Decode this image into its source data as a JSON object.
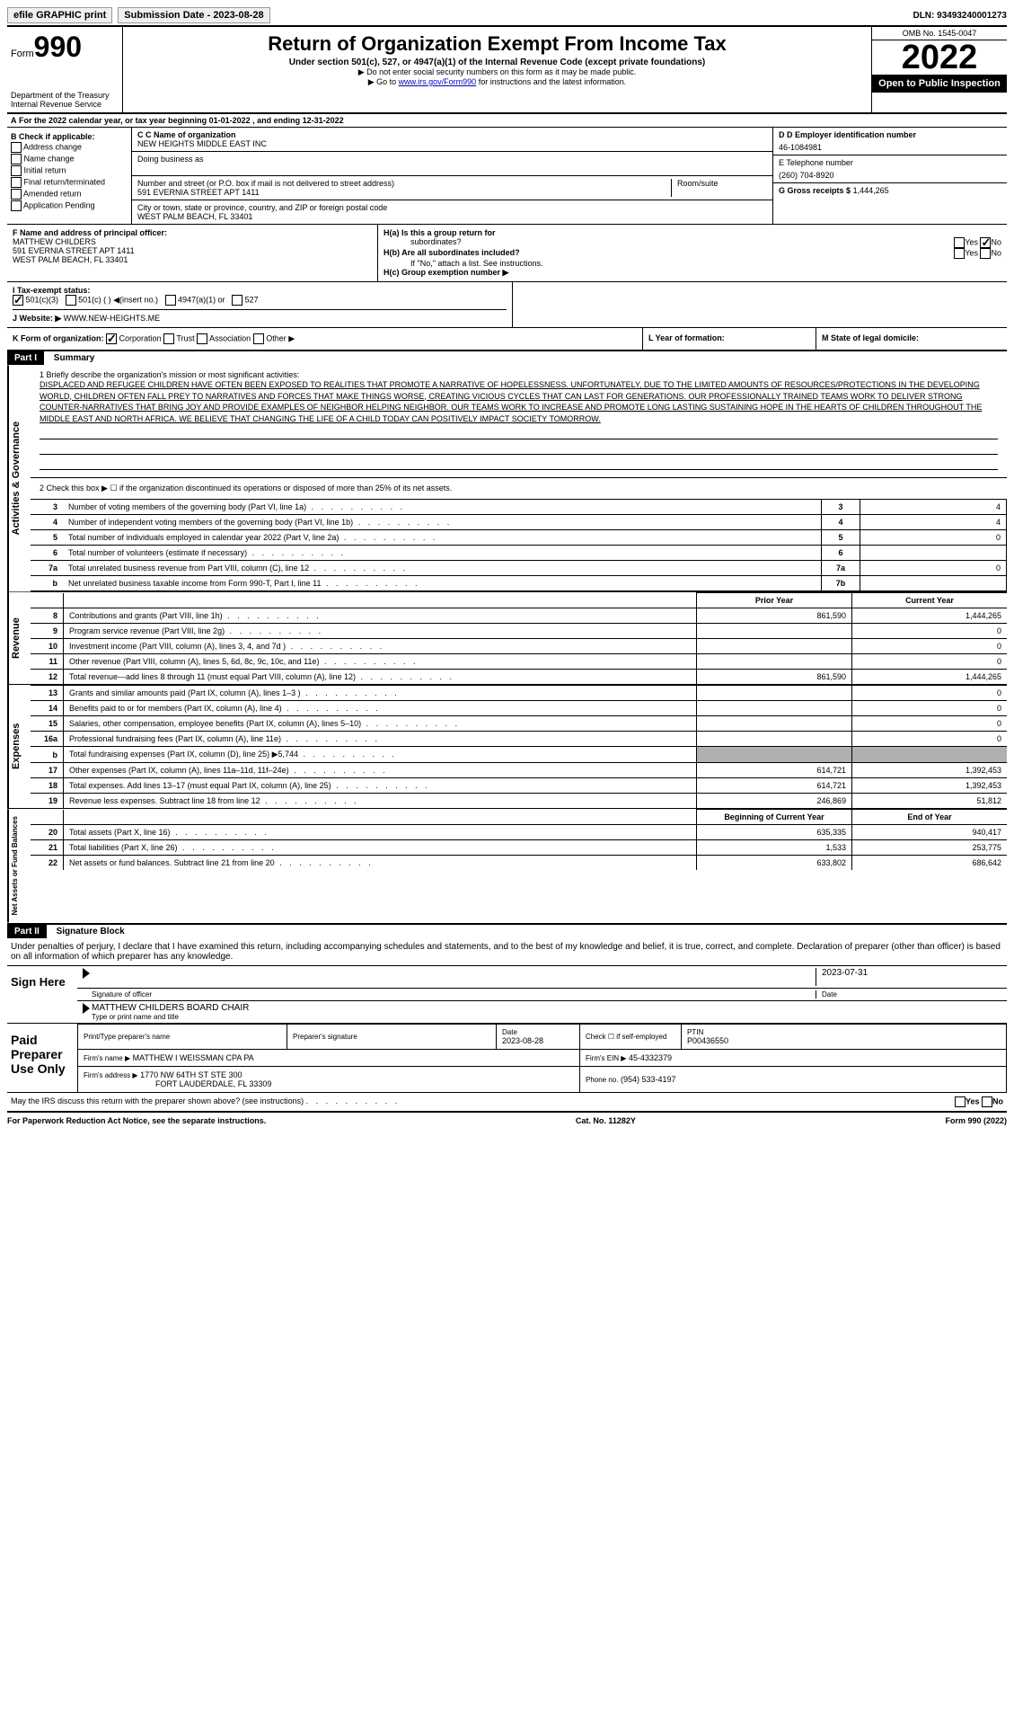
{
  "top": {
    "efile": "efile GRAPHIC print",
    "submission_label": "Submission Date - 2023-08-28",
    "dln": "DLN: 93493240001273"
  },
  "header": {
    "form_prefix": "Form",
    "form_num": "990",
    "dept": "Department of the Treasury",
    "irs": "Internal Revenue Service",
    "title": "Return of Organization Exempt From Income Tax",
    "sub1": "Under section 501(c), 527, or 4947(a)(1) of the Internal Revenue Code (except private foundations)",
    "sub2": "▶ Do not enter social security numbers on this form as it may be made public.",
    "sub3_pre": "▶ Go to ",
    "sub3_link": "www.irs.gov/Form990",
    "sub3_post": " for instructions and the latest information.",
    "omb": "OMB No. 1545-0047",
    "year": "2022",
    "open": "Open to Public Inspection"
  },
  "line_a": "For the 2022 calendar year, or tax year beginning 01-01-2022   , and ending 12-31-2022",
  "box_b": {
    "label": "B Check if applicable:",
    "opts": [
      "Address change",
      "Name change",
      "Initial return",
      "Final return/terminated",
      "Amended return",
      "Application Pending"
    ]
  },
  "box_c": {
    "name_label": "C Name of organization",
    "name": "NEW HEIGHTS MIDDLE EAST INC",
    "dba_label": "Doing business as",
    "addr_label": "Number and street (or P.O. box if mail is not delivered to street address)",
    "room_label": "Room/suite",
    "addr": "591 EVERNIA STREET APT 1411",
    "city_label": "City or town, state or province, country, and ZIP or foreign postal code",
    "city": "WEST PALM BEACH, FL  33401"
  },
  "box_d": {
    "label": "D Employer identification number",
    "ein": "46-1084981",
    "e_label": "E Telephone number",
    "phone": "(260) 704-8920",
    "g_label": "G Gross receipts $",
    "gross": "1,444,265"
  },
  "box_f": {
    "label": "F  Name and address of principal officer:",
    "name": "MATTHEW CHILDERS",
    "addr1": "591 EVERNIA STREET APT 1411",
    "addr2": "WEST PALM BEACH, FL  33401"
  },
  "box_h": {
    "ha": "H(a)  Is this a group return for",
    "ha2": "subordinates?",
    "hb": "H(b)  Are all subordinates included?",
    "hb_note": "If \"No,\" attach a list. See instructions.",
    "hc": "H(c)  Group exemption number ▶"
  },
  "box_i": {
    "label": "I   Tax-exempt status:",
    "opts": [
      "501(c)(3)",
      "501(c) (  ) ◀(insert no.)",
      "4947(a)(1) or",
      "527"
    ]
  },
  "box_j": {
    "label": "J   Website: ▶",
    "value": "WWW.NEW-HEIGHTS.ME"
  },
  "box_k": "K Form of organization:",
  "box_k_opts": [
    "Corporation",
    "Trust",
    "Association",
    "Other ▶"
  ],
  "box_l": "L Year of formation:",
  "box_m": "M State of legal domicile:",
  "part1": {
    "label": "Part I",
    "title": "Summary",
    "q1": "1   Briefly describe the organization's mission or most significant activities:",
    "mission": "DISPLACED AND REFUGEE CHILDREN HAVE OFTEN BEEN EXPOSED TO REALITIES THAT PROMOTE A NARRATIVE OF HOPELESSNESS. UNFORTUNATELY, DUE TO THE LIMITED AMOUNTS OF RESOURCES/PROTECTIONS IN THE DEVELOPING WORLD, CHILDREN OFTEN FALL PREY TO NARRATIVES AND FORCES THAT MAKE THINGS WORSE, CREATING VICIOUS CYCLES THAT CAN LAST FOR GENERATIONS. OUR PROFESSIONALLY TRAINED TEAMS WORK TO DELIVER STRONG COUNTER-NARRATIVES THAT BRING JOY AND PROVIDE EXAMPLES OF NEIGHBOR HELPING NEIGHBOR. OUR TEAMS WORK TO INCREASE AND PROMOTE LONG LASTING SUSTAINING HOPE IN THE HEARTS OF CHILDREN THROUGHOUT THE MIDDLE EAST AND NORTH AFRICA. WE BELIEVE THAT CHANGING THE LIFE OF A CHILD TODAY CAN POSITIVELY IMPACT SOCIETY TOMORROW.",
    "q2": "2   Check this box ▶ ☐  if the organization discontinued its operations or disposed of more than 25% of its net assets."
  },
  "gov_lines": [
    {
      "n": "3",
      "d": "Number of voting members of the governing body (Part VI, line 1a)",
      "c": "3",
      "v": "4"
    },
    {
      "n": "4",
      "d": "Number of independent voting members of the governing body (Part VI, line 1b)",
      "c": "4",
      "v": "4"
    },
    {
      "n": "5",
      "d": "Total number of individuals employed in calendar year 2022 (Part V, line 2a)",
      "c": "5",
      "v": "0"
    },
    {
      "n": "6",
      "d": "Total number of volunteers (estimate if necessary)",
      "c": "6",
      "v": ""
    },
    {
      "n": "7a",
      "d": "Total unrelated business revenue from Part VIII, column (C), line 12",
      "c": "7a",
      "v": "0"
    },
    {
      "n": "b",
      "d": "Net unrelated business taxable income from Form 990-T, Part I, line 11",
      "c": "7b",
      "v": ""
    }
  ],
  "rev_header": {
    "prior": "Prior Year",
    "current": "Current Year"
  },
  "rev_lines": [
    {
      "n": "8",
      "d": "Contributions and grants (Part VIII, line 1h)",
      "p": "861,590",
      "c": "1,444,265"
    },
    {
      "n": "9",
      "d": "Program service revenue (Part VIII, line 2g)",
      "p": "",
      "c": "0"
    },
    {
      "n": "10",
      "d": "Investment income (Part VIII, column (A), lines 3, 4, and 7d )",
      "p": "",
      "c": "0"
    },
    {
      "n": "11",
      "d": "Other revenue (Part VIII, column (A), lines 5, 6d, 8c, 9c, 10c, and 11e)",
      "p": "",
      "c": "0"
    },
    {
      "n": "12",
      "d": "Total revenue—add lines 8 through 11 (must equal Part VIII, column (A), line 12)",
      "p": "861,590",
      "c": "1,444,265"
    }
  ],
  "exp_lines": [
    {
      "n": "13",
      "d": "Grants and similar amounts paid (Part IX, column (A), lines 1–3 )",
      "p": "",
      "c": "0"
    },
    {
      "n": "14",
      "d": "Benefits paid to or for members (Part IX, column (A), line 4)",
      "p": "",
      "c": "0"
    },
    {
      "n": "15",
      "d": "Salaries, other compensation, employee benefits (Part IX, column (A), lines 5–10)",
      "p": "",
      "c": "0"
    },
    {
      "n": "16a",
      "d": "Professional fundraising fees (Part IX, column (A), line 11e)",
      "p": "",
      "c": "0"
    },
    {
      "n": "b",
      "d": "Total fundraising expenses (Part IX, column (D), line 25) ▶5,744",
      "p": "SHADE",
      "c": "SHADE"
    },
    {
      "n": "17",
      "d": "Other expenses (Part IX, column (A), lines 11a–11d, 11f–24e)",
      "p": "614,721",
      "c": "1,392,453"
    },
    {
      "n": "18",
      "d": "Total expenses. Add lines 13–17 (must equal Part IX, column (A), line 25)",
      "p": "614,721",
      "c": "1,392,453"
    },
    {
      "n": "19",
      "d": "Revenue less expenses. Subtract line 18 from line 12",
      "p": "246,869",
      "c": "51,812"
    }
  ],
  "net_header": {
    "prior": "Beginning of Current Year",
    "current": "End of Year"
  },
  "net_lines": [
    {
      "n": "20",
      "d": "Total assets (Part X, line 16)",
      "p": "635,335",
      "c": "940,417"
    },
    {
      "n": "21",
      "d": "Total liabilities (Part X, line 26)",
      "p": "1,533",
      "c": "253,775"
    },
    {
      "n": "22",
      "d": "Net assets or fund balances. Subtract line 21 from line 20",
      "p": "633,802",
      "c": "686,642"
    }
  ],
  "part2": {
    "label": "Part II",
    "title": "Signature Block",
    "declare": "Under penalties of perjury, I declare that I have examined this return, including accompanying schedules and statements, and to the best of my knowledge and belief, it is true, correct, and complete. Declaration of preparer (other than officer) is based on all information of which preparer has any knowledge."
  },
  "sign": {
    "here": "Sign Here",
    "sig_label": "Signature of officer",
    "date": "2023-07-31",
    "date_label": "Date",
    "name": "MATTHEW CHILDERS  BOARD CHAIR",
    "name_label": "Type or print name and title"
  },
  "paid": {
    "label": "Paid Preparer Use Only",
    "h1": "Print/Type preparer's name",
    "h2": "Preparer's signature",
    "h3": "Date",
    "h3v": "2023-08-28",
    "h4": "Check ☐ if self-employed",
    "h5": "PTIN",
    "h5v": "P00436550",
    "firm_label": "Firm's name    ▶",
    "firm": "MATTHEW I WEISSMAN CPA PA",
    "ein_label": "Firm's EIN ▶",
    "ein": "45-4332379",
    "addr_label": "Firm's address ▶",
    "addr": "1770 NW 64TH ST STE 300",
    "addr2": "FORT LAUDERDALE, FL  33309",
    "phone_label": "Phone no.",
    "phone": "(954) 533-4197"
  },
  "may_discuss": "May the IRS discuss this return with the preparer shown above? (see instructions)",
  "footer": {
    "left": "For Paperwork Reduction Act Notice, see the separate instructions.",
    "mid": "Cat. No. 11282Y",
    "right": "Form 990 (2022)"
  },
  "side_labels": {
    "gov": "Activities & Governance",
    "rev": "Revenue",
    "exp": "Expenses",
    "net": "Net Assets or Fund Balances"
  }
}
